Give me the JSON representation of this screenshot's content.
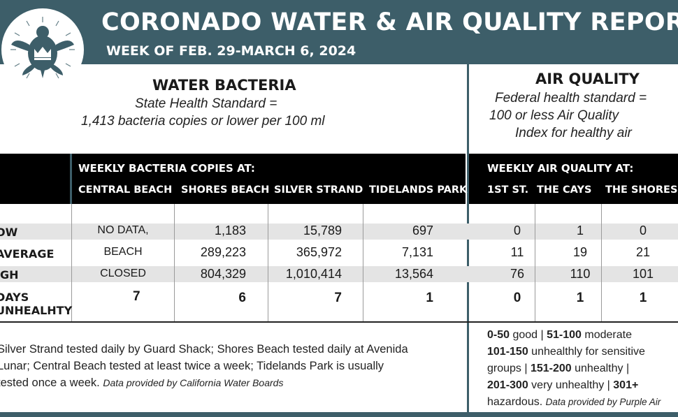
{
  "header": {
    "title": "CORONADO WATER & AIR QUALITY REPORT",
    "subtitle": "WEEK OF FEB. 29-MARCH 6, 2024"
  },
  "water": {
    "title": "WATER BACTERIA",
    "standard_line1": "State Health Standard  =",
    "standard_line2": "1,413 bacteria copies or lower per 100 ml",
    "table_heading": "WEEKLY BACTERIA COPIES AT:",
    "columns": [
      "CENTRAL BEACH",
      "SHORES BEACH",
      "SILVER STRAND",
      "TIDELANDS PARK"
    ]
  },
  "air": {
    "title": "AIR QUALITY",
    "standard_line1": "Federal health standard =",
    "standard_line2": "100 or less Air Quality",
    "standard_line3": "Index for healthy air",
    "table_heading": "WEEKLY AIR QUALITY AT:",
    "columns": [
      "1ST ST.",
      "THE CAYS",
      "THE SHORES"
    ]
  },
  "rows": [
    {
      "label": "OW",
      "central": "NO DATA,",
      "shores": "1,183",
      "silver": "15,789",
      "tidelands": "697",
      "first_st": "0",
      "cays": "1",
      "the_shores": "0"
    },
    {
      "label": "AVERAGE",
      "central": "BEACH",
      "shores": "289,223",
      "silver": "365,972",
      "tidelands": "7,131",
      "first_st": "11",
      "cays": "19",
      "the_shores": "21"
    },
    {
      "label": "IGH",
      "central": "CLOSED",
      "shores": "804,329",
      "silver": "1,010,414",
      "tidelands": "13,564",
      "first_st": "76",
      "cays": "110",
      "the_shores": "101"
    },
    {
      "label_line1": "DAYS",
      "label_line2": "UNHEALHTY",
      "central": "7",
      "shores": "6",
      "silver": "7",
      "tidelands": "1",
      "first_st": "0",
      "cays": "1",
      "the_shores": "1"
    }
  ],
  "notes": {
    "line1": "Silver Strand tested daily by Guard Shack; Shores Beach tested daily at Avenida",
    "line2": "Lunar; Central Beach tested at least twice a week; Tidelands Park is usually",
    "line3": "tested once a week.",
    "source": "Data provided by California Water Boards"
  },
  "aqi_legend": {
    "r1_range": "0-50",
    "r1_text": " good | ",
    "r1b_range": "51-100",
    "r1b_text": " moderate",
    "r2_range": "101-150",
    "r2_text": " unhealthly for sensitive",
    "r3_text": "groups | ",
    "r3_range": "151-200",
    "r3b_text": " unhealthy |",
    "r4_range": "201-300",
    "r4_text": " very unhealthy | ",
    "r4b_range": "301+",
    "r5_text": "hazardous.",
    "source": "Data provided by Purple Air"
  },
  "colors": {
    "header_bg": "#3d5e69",
    "table_bar": "#000000",
    "row_shade": "#e4e4e4"
  },
  "icons": {
    "logo": "sea-turtle-crown-icon"
  }
}
